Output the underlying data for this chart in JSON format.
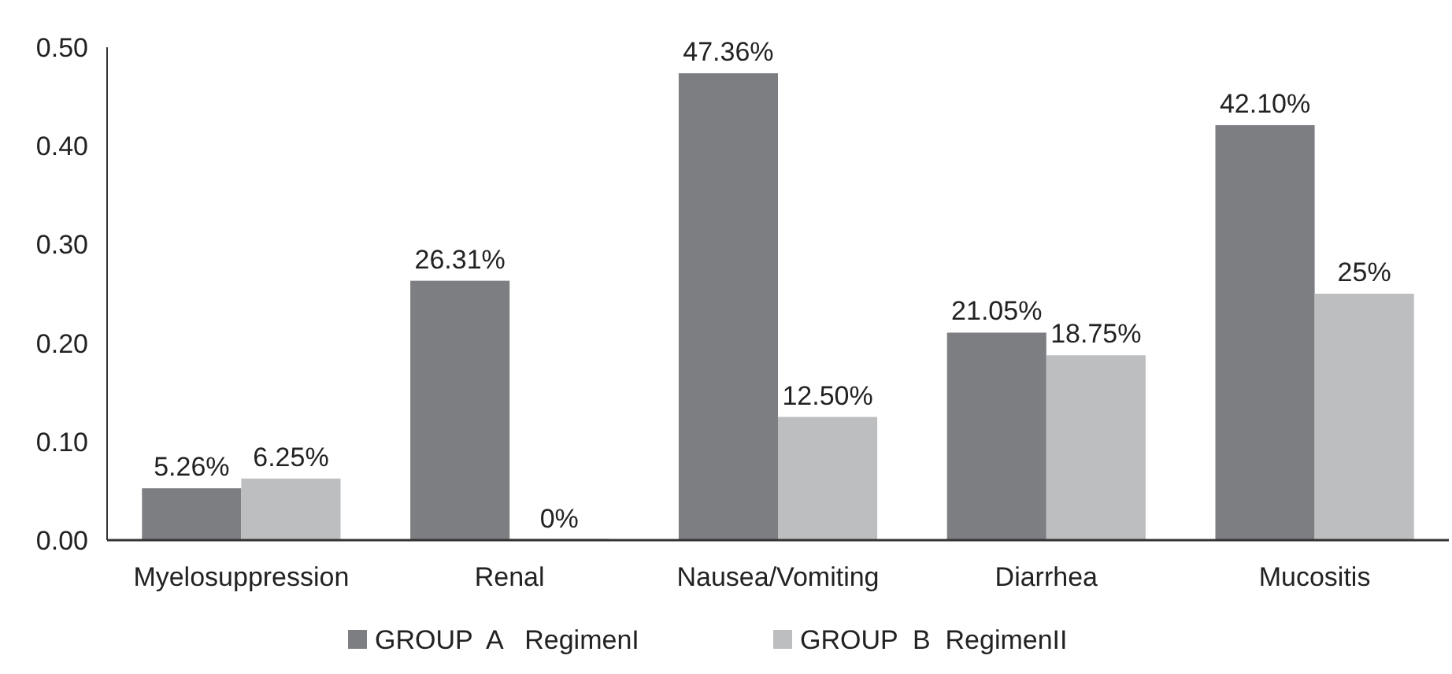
{
  "chart_data": {
    "type": "bar",
    "categories": [
      "Myelosuppression",
      "Renal",
      "Nausea/Vomiting",
      "Diarrhea",
      "Mucositis"
    ],
    "series": [
      {
        "name": "GROUP  A   RegimenI",
        "color": "#7d7e82",
        "values": [
          0.0526,
          0.2631,
          0.4736,
          0.2105,
          0.421
        ],
        "value_labels": [
          "5.26%",
          "26.31%",
          "47.36%",
          "21.05%",
          "42.10%"
        ]
      },
      {
        "name": "GROUP  B  RegimenII",
        "color": "#bdbec0",
        "values": [
          0.0625,
          0,
          0.125,
          0.1875,
          0.25
        ],
        "value_labels": [
          "6.25%",
          "0%",
          "12.50%",
          "18.75%",
          "25%"
        ]
      }
    ],
    "ylim": [
      0,
      0.5
    ],
    "yticks": [
      {
        "value": 0,
        "label": "0.00"
      },
      {
        "value": 0.1,
        "label": "0.10"
      },
      {
        "value": 0.2,
        "label": "0.20"
      },
      {
        "value": 0.3,
        "label": "0.30"
      },
      {
        "value": 0.4,
        "label": "0.40"
      },
      {
        "value": 0.5,
        "label": "0.50"
      }
    ],
    "legend": "bottom",
    "grid": false
  }
}
